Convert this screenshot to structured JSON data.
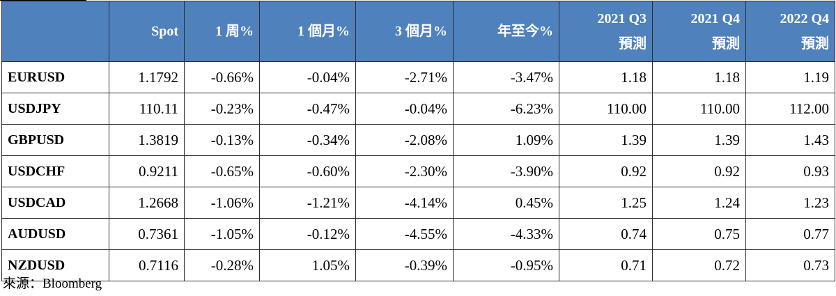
{
  "table": {
    "headers": [
      {
        "line1": "",
        "line2": ""
      },
      {
        "line1": "Spot",
        "line2": ""
      },
      {
        "line1": "1 周%",
        "line2": ""
      },
      {
        "line1": "1 個月%",
        "line2": ""
      },
      {
        "line1": "3 個月%",
        "line2": ""
      },
      {
        "line1": "年至今%",
        "line2": ""
      },
      {
        "line1": "2021 Q3",
        "line2": "預測"
      },
      {
        "line1": "2021 Q4",
        "line2": "預測"
      },
      {
        "line1": "2022 Q4",
        "line2": "預測"
      }
    ],
    "rows": [
      {
        "pair": "EURUSD",
        "spot": "1.1792",
        "w1": "-0.66%",
        "m1": "-0.04%",
        "m3": "-2.71%",
        "ytd": "-3.47%",
        "q3_2021": "1.18",
        "q4_2021": "1.18",
        "q4_2022": "1.19"
      },
      {
        "pair": "USDJPY",
        "spot": "110.11",
        "w1": "-0.23%",
        "m1": "-0.47%",
        "m3": "-0.04%",
        "ytd": "-6.23%",
        "q3_2021": "110.00",
        "q4_2021": "110.00",
        "q4_2022": "112.00"
      },
      {
        "pair": "GBPUSD",
        "spot": "1.3819",
        "w1": "-0.13%",
        "m1": "-0.34%",
        "m3": "-2.08%",
        "ytd": "1.09%",
        "q3_2021": "1.39",
        "q4_2021": "1.39",
        "q4_2022": "1.43"
      },
      {
        "pair": "USDCHF",
        "spot": "0.9211",
        "w1": "-0.65%",
        "m1": "-0.60%",
        "m3": "-2.30%",
        "ytd": "-3.90%",
        "q3_2021": "0.92",
        "q4_2021": "0.92",
        "q4_2022": "0.93"
      },
      {
        "pair": "USDCAD",
        "spot": "1.2668",
        "w1": "-1.06%",
        "m1": "-1.21%",
        "m3": "-4.14%",
        "ytd": "0.45%",
        "q3_2021": "1.25",
        "q4_2021": "1.24",
        "q4_2022": "1.23"
      },
      {
        "pair": "AUDUSD",
        "spot": "0.7361",
        "w1": "-1.05%",
        "m1": "-0.12%",
        "m3": "-4.55%",
        "ytd": "-4.33%",
        "q3_2021": "0.74",
        "q4_2021": "0.75",
        "q4_2022": "0.77"
      },
      {
        "pair": "NZDUSD",
        "spot": "0.7116",
        "w1": "-0.28%",
        "m1": "1.05%",
        "m3": "-0.39%",
        "ytd": "-0.95%",
        "q3_2021": "0.71",
        "q4_2021": "0.72",
        "q4_2022": "0.73"
      }
    ]
  },
  "source_note": "來源：Bloomberg",
  "colors": {
    "header_bg": "#4f81bd",
    "header_text": "#ffffff",
    "border": "#2c2c2c"
  }
}
